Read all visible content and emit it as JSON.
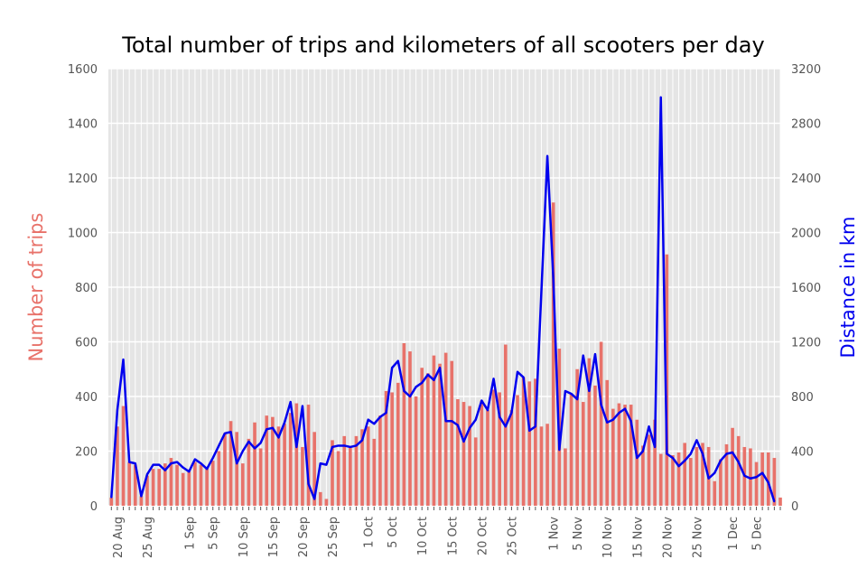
{
  "chart_data": {
    "type": "bar+line",
    "title": "Total number of trips and kilometers of all scooters per day",
    "y_left_label": "Number of trips",
    "y_right_label": "Distance in km",
    "y_left_range": [
      0,
      1600
    ],
    "y_right_range": [
      0,
      3200
    ],
    "y_left_ticks": [
      0,
      200,
      400,
      600,
      800,
      1000,
      1200,
      1400,
      1600
    ],
    "y_right_ticks": [
      0,
      400,
      800,
      1200,
      1600,
      2000,
      2400,
      2800,
      3200
    ],
    "x_start": "2019-08-19",
    "x_end": "2019-12-07",
    "x_ticks": [
      {
        "date": "2019-08-20",
        "label": "20 Aug"
      },
      {
        "date": "2019-08-25",
        "label": "25 Aug"
      },
      {
        "date": "2019-09-01",
        "label": "1 Sep"
      },
      {
        "date": "2019-09-05",
        "label": "5 Sep"
      },
      {
        "date": "2019-09-10",
        "label": "10 Sep"
      },
      {
        "date": "2019-09-15",
        "label": "15 Sep"
      },
      {
        "date": "2019-09-20",
        "label": "20 Sep"
      },
      {
        "date": "2019-09-25",
        "label": "25 Sep"
      },
      {
        "date": "2019-10-01",
        "label": "1 Oct"
      },
      {
        "date": "2019-10-05",
        "label": "5 Oct"
      },
      {
        "date": "2019-10-10",
        "label": "10 Oct"
      },
      {
        "date": "2019-10-15",
        "label": "15 Oct"
      },
      {
        "date": "2019-10-20",
        "label": "20 Oct"
      },
      {
        "date": "2019-10-25",
        "label": "25 Oct"
      },
      {
        "date": "2019-11-01",
        "label": "1 Nov"
      },
      {
        "date": "2019-11-05",
        "label": "5 Nov"
      },
      {
        "date": "2019-11-10",
        "label": "10 Nov"
      },
      {
        "date": "2019-11-15",
        "label": "15 Nov"
      },
      {
        "date": "2019-11-20",
        "label": "20 Nov"
      },
      {
        "date": "2019-11-25",
        "label": "25 Nov"
      },
      {
        "date": "2019-12-01",
        "label": "1 Dec"
      },
      {
        "date": "2019-12-05",
        "label": "5 Dec"
      }
    ],
    "series": [
      {
        "name": "Number of trips",
        "axis": "left",
        "kind": "bar",
        "color": "#e8726a",
        "points": [
          [
            "2019-08-19",
            30
          ],
          [
            "2019-08-20",
            290
          ],
          [
            "2019-08-21",
            365
          ],
          [
            "2019-08-22",
            160
          ],
          [
            "2019-08-23",
            150
          ],
          [
            "2019-08-24",
            35
          ],
          [
            "2019-08-25",
            110
          ],
          [
            "2019-08-26",
            135
          ],
          [
            "2019-08-27",
            135
          ],
          [
            "2019-08-28",
            155
          ],
          [
            "2019-08-29",
            175
          ],
          [
            "2019-08-30",
            150
          ],
          [
            "2019-08-31",
            120
          ],
          [
            "2019-09-01",
            125
          ],
          [
            "2019-09-02",
            160
          ],
          [
            "2019-09-03",
            150
          ],
          [
            "2019-09-04",
            140
          ],
          [
            "2019-09-05",
            165
          ],
          [
            "2019-09-06",
            200
          ],
          [
            "2019-09-07",
            265
          ],
          [
            "2019-09-08",
            310
          ],
          [
            "2019-09-09",
            270
          ],
          [
            "2019-09-10",
            155
          ],
          [
            "2019-09-11",
            245
          ],
          [
            "2019-09-12",
            305
          ],
          [
            "2019-09-13",
            210
          ],
          [
            "2019-09-14",
            330
          ],
          [
            "2019-09-15",
            325
          ],
          [
            "2019-09-16",
            290
          ],
          [
            "2019-09-17",
            300
          ],
          [
            "2019-09-18",
            340
          ],
          [
            "2019-09-19",
            375
          ],
          [
            "2019-09-20",
            215
          ],
          [
            "2019-09-21",
            370
          ],
          [
            "2019-09-22",
            270
          ],
          [
            "2019-09-23",
            50
          ],
          [
            "2019-09-24",
            25
          ],
          [
            "2019-09-25",
            240
          ],
          [
            "2019-09-26",
            200
          ],
          [
            "2019-09-27",
            255
          ],
          [
            "2019-09-28",
            215
          ],
          [
            "2019-09-29",
            255
          ],
          [
            "2019-09-30",
            280
          ],
          [
            "2019-10-01",
            290
          ],
          [
            "2019-10-02",
            245
          ],
          [
            "2019-10-03",
            330
          ],
          [
            "2019-10-04",
            420
          ],
          [
            "2019-10-05",
            415
          ],
          [
            "2019-10-06",
            450
          ],
          [
            "2019-10-07",
            595
          ],
          [
            "2019-10-08",
            565
          ],
          [
            "2019-10-09",
            400
          ],
          [
            "2019-10-10",
            505
          ],
          [
            "2019-10-11",
            485
          ],
          [
            "2019-10-12",
            550
          ],
          [
            "2019-10-13",
            520
          ],
          [
            "2019-10-14",
            560
          ],
          [
            "2019-10-15",
            530
          ],
          [
            "2019-10-16",
            390
          ],
          [
            "2019-10-17",
            380
          ],
          [
            "2019-10-18",
            365
          ],
          [
            "2019-10-19",
            250
          ],
          [
            "2019-10-20",
            385
          ],
          [
            "2019-10-21",
            350
          ],
          [
            "2019-10-22",
            425
          ],
          [
            "2019-10-23",
            415
          ],
          [
            "2019-10-24",
            590
          ],
          [
            "2019-10-25",
            350
          ],
          [
            "2019-10-26",
            405
          ],
          [
            "2019-10-27",
            470
          ],
          [
            "2019-10-28",
            455
          ],
          [
            "2019-10-29",
            465
          ],
          [
            "2019-10-30",
            290
          ],
          [
            "2019-10-31",
            300
          ],
          [
            "2019-11-01",
            1110
          ],
          [
            "2019-11-02",
            575
          ],
          [
            "2019-11-03",
            210
          ],
          [
            "2019-11-04",
            410
          ],
          [
            "2019-11-05",
            500
          ],
          [
            "2019-11-06",
            380
          ],
          [
            "2019-11-07",
            540
          ],
          [
            "2019-11-08",
            440
          ],
          [
            "2019-11-09",
            600
          ],
          [
            "2019-11-10",
            460
          ],
          [
            "2019-11-11",
            355
          ],
          [
            "2019-11-12",
            375
          ],
          [
            "2019-11-13",
            370
          ],
          [
            "2019-11-14",
            370
          ],
          [
            "2019-11-15",
            315
          ],
          [
            "2019-11-16",
            220
          ],
          [
            "2019-11-17",
            260
          ],
          [
            "2019-11-18",
            315
          ],
          [
            "2019-11-19",
            190
          ],
          [
            "2019-11-20",
            920
          ],
          [
            "2019-11-21",
            185
          ],
          [
            "2019-11-22",
            195
          ],
          [
            "2019-11-23",
            230
          ],
          [
            "2019-11-24",
            175
          ],
          [
            "2019-11-25",
            215
          ],
          [
            "2019-11-26",
            230
          ],
          [
            "2019-11-27",
            215
          ],
          [
            "2019-11-28",
            90
          ],
          [
            "2019-11-29",
            170
          ],
          [
            "2019-11-30",
            225
          ],
          [
            "2019-12-01",
            285
          ],
          [
            "2019-12-02",
            255
          ],
          [
            "2019-12-03",
            215
          ],
          [
            "2019-12-04",
            210
          ],
          [
            "2019-12-05",
            160
          ],
          [
            "2019-12-06",
            195
          ],
          [
            "2019-12-07",
            195
          ],
          [
            "2019-12-08",
            175
          ],
          [
            "2019-12-09",
            30
          ]
        ]
      },
      {
        "name": "Distance in km",
        "axis": "right",
        "kind": "line",
        "color": "#0000ee",
        "points": [
          [
            "2019-08-19",
            60
          ],
          [
            "2019-08-20",
            700
          ],
          [
            "2019-08-21",
            1070
          ],
          [
            "2019-08-22",
            320
          ],
          [
            "2019-08-23",
            310
          ],
          [
            "2019-08-24",
            70
          ],
          [
            "2019-08-25",
            230
          ],
          [
            "2019-08-26",
            300
          ],
          [
            "2019-08-27",
            300
          ],
          [
            "2019-08-28",
            260
          ],
          [
            "2019-08-29",
            310
          ],
          [
            "2019-08-30",
            320
          ],
          [
            "2019-08-31",
            280
          ],
          [
            "2019-09-01",
            250
          ],
          [
            "2019-09-02",
            340
          ],
          [
            "2019-09-03",
            310
          ],
          [
            "2019-09-04",
            270
          ],
          [
            "2019-09-05",
            350
          ],
          [
            "2019-09-06",
            440
          ],
          [
            "2019-09-07",
            530
          ],
          [
            "2019-09-08",
            540
          ],
          [
            "2019-09-09",
            310
          ],
          [
            "2019-09-10",
            400
          ],
          [
            "2019-09-11",
            470
          ],
          [
            "2019-09-12",
            420
          ],
          [
            "2019-09-13",
            460
          ],
          [
            "2019-09-14",
            560
          ],
          [
            "2019-09-15",
            570
          ],
          [
            "2019-09-16",
            500
          ],
          [
            "2019-09-17",
            610
          ],
          [
            "2019-09-18",
            760
          ],
          [
            "2019-09-19",
            430
          ],
          [
            "2019-09-20",
            730
          ],
          [
            "2019-09-21",
            160
          ],
          [
            "2019-09-22",
            50
          ],
          [
            "2019-09-23",
            310
          ],
          [
            "2019-09-24",
            300
          ],
          [
            "2019-09-25",
            430
          ],
          [
            "2019-09-26",
            440
          ],
          [
            "2019-09-27",
            440
          ],
          [
            "2019-09-28",
            430
          ],
          [
            "2019-09-29",
            440
          ],
          [
            "2019-09-30",
            480
          ],
          [
            "2019-10-01",
            630
          ],
          [
            "2019-10-02",
            600
          ],
          [
            "2019-10-03",
            650
          ],
          [
            "2019-10-04",
            680
          ],
          [
            "2019-10-05",
            1010
          ],
          [
            "2019-10-06",
            1060
          ],
          [
            "2019-10-07",
            840
          ],
          [
            "2019-10-08",
            800
          ],
          [
            "2019-10-09",
            870
          ],
          [
            "2019-10-10",
            900
          ],
          [
            "2019-10-11",
            960
          ],
          [
            "2019-10-12",
            920
          ],
          [
            "2019-10-13",
            1010
          ],
          [
            "2019-10-14",
            620
          ],
          [
            "2019-10-15",
            620
          ],
          [
            "2019-10-16",
            590
          ],
          [
            "2019-10-17",
            470
          ],
          [
            "2019-10-18",
            570
          ],
          [
            "2019-10-19",
            630
          ],
          [
            "2019-10-20",
            770
          ],
          [
            "2019-10-21",
            700
          ],
          [
            "2019-10-22",
            930
          ],
          [
            "2019-10-23",
            650
          ],
          [
            "2019-10-24",
            580
          ],
          [
            "2019-10-25",
            680
          ],
          [
            "2019-10-26",
            980
          ],
          [
            "2019-10-27",
            940
          ],
          [
            "2019-10-28",
            550
          ],
          [
            "2019-10-29",
            580
          ],
          [
            "2019-10-30",
            1570
          ],
          [
            "2019-10-31",
            2560
          ],
          [
            "2019-11-01",
            1660
          ],
          [
            "2019-11-02",
            410
          ],
          [
            "2019-11-03",
            840
          ],
          [
            "2019-11-04",
            820
          ],
          [
            "2019-11-05",
            780
          ],
          [
            "2019-11-06",
            1100
          ],
          [
            "2019-11-07",
            840
          ],
          [
            "2019-11-08",
            1110
          ],
          [
            "2019-11-09",
            740
          ],
          [
            "2019-11-10",
            610
          ],
          [
            "2019-11-11",
            630
          ],
          [
            "2019-11-12",
            680
          ],
          [
            "2019-11-13",
            710
          ],
          [
            "2019-11-14",
            620
          ],
          [
            "2019-11-15",
            350
          ],
          [
            "2019-11-16",
            400
          ],
          [
            "2019-11-17",
            580
          ],
          [
            "2019-11-18",
            430
          ],
          [
            "2019-11-19",
            2990
          ],
          [
            "2019-11-20",
            380
          ],
          [
            "2019-11-21",
            350
          ],
          [
            "2019-11-22",
            290
          ],
          [
            "2019-11-23",
            330
          ],
          [
            "2019-11-24",
            380
          ],
          [
            "2019-11-25",
            480
          ],
          [
            "2019-11-26",
            380
          ],
          [
            "2019-11-27",
            200
          ],
          [
            "2019-11-28",
            240
          ],
          [
            "2019-11-29",
            330
          ],
          [
            "2019-11-30",
            380
          ],
          [
            "2019-12-01",
            390
          ],
          [
            "2019-12-02",
            320
          ],
          [
            "2019-12-03",
            220
          ],
          [
            "2019-12-04",
            200
          ],
          [
            "2019-12-05",
            210
          ],
          [
            "2019-12-06",
            240
          ],
          [
            "2019-12-07",
            170
          ],
          [
            "2019-12-08",
            30
          ]
        ]
      }
    ],
    "grid": true,
    "legend": "none",
    "colors": {
      "background": "#e5e5e5",
      "grid": "#ffffff"
    }
  }
}
